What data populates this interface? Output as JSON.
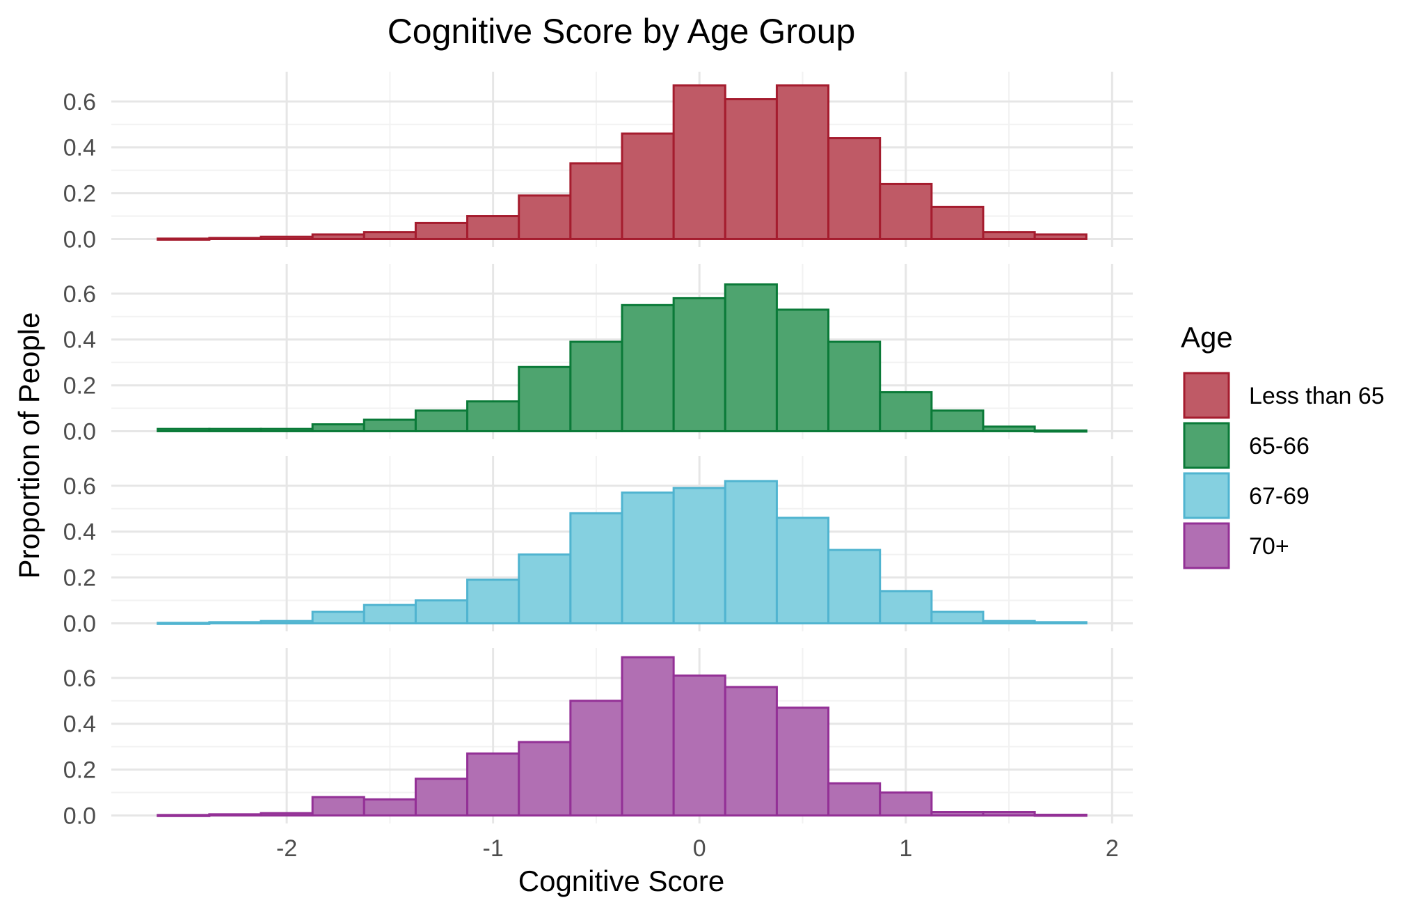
{
  "chart_data": {
    "type": "bar",
    "subtype": "faceted-histogram",
    "title": "Cognitive Score by Age Group",
    "xlabel": "Cognitive Score",
    "ylabel": "Proportion of People",
    "xlim": [
      -2.85,
      2.1
    ],
    "ylim": [
      -0.035,
      0.73
    ],
    "x_ticks": [
      -2,
      -1,
      0,
      1,
      2
    ],
    "y_ticks": [
      0.0,
      0.2,
      0.4,
      0.6
    ],
    "y_tick_labels": [
      "0.0",
      "0.2",
      "0.4",
      "0.6"
    ],
    "grid": true,
    "legend": {
      "title": "Age",
      "position": "right"
    },
    "bin_edges": [
      -2.625,
      -2.375,
      -2.125,
      -1.875,
      -1.625,
      -1.375,
      -1.125,
      -0.875,
      -0.625,
      -0.375,
      -0.125,
      0.125,
      0.375,
      0.625,
      0.875,
      1.125,
      1.375,
      1.625,
      1.875
    ],
    "series": [
      {
        "name": "Less than 65",
        "fill": "#BF5A66",
        "stroke": "#A51C2E",
        "values": [
          0.002,
          0.005,
          0.01,
          0.02,
          0.03,
          0.07,
          0.1,
          0.19,
          0.33,
          0.46,
          0.67,
          0.61,
          0.67,
          0.44,
          0.24,
          0.14,
          0.03,
          0.02
        ]
      },
      {
        "name": "65-66",
        "fill": "#4EA46F",
        "stroke": "#0A7A38",
        "values": [
          0.01,
          0.01,
          0.01,
          0.03,
          0.05,
          0.09,
          0.13,
          0.28,
          0.39,
          0.55,
          0.58,
          0.64,
          0.53,
          0.39,
          0.17,
          0.09,
          0.02,
          0.003
        ]
      },
      {
        "name": "67-69",
        "fill": "#85D0E0",
        "stroke": "#50B4D0",
        "values": [
          0.002,
          0.005,
          0.01,
          0.05,
          0.08,
          0.1,
          0.19,
          0.3,
          0.48,
          0.57,
          0.59,
          0.62,
          0.46,
          0.32,
          0.14,
          0.05,
          0.01,
          0.005
        ]
      },
      {
        "name": "70+",
        "fill": "#B16FB3",
        "stroke": "#933096",
        "values": [
          0.002,
          0.005,
          0.01,
          0.08,
          0.07,
          0.16,
          0.27,
          0.32,
          0.5,
          0.69,
          0.61,
          0.56,
          0.47,
          0.14,
          0.1,
          0.015,
          0.015,
          0.003
        ]
      }
    ]
  }
}
